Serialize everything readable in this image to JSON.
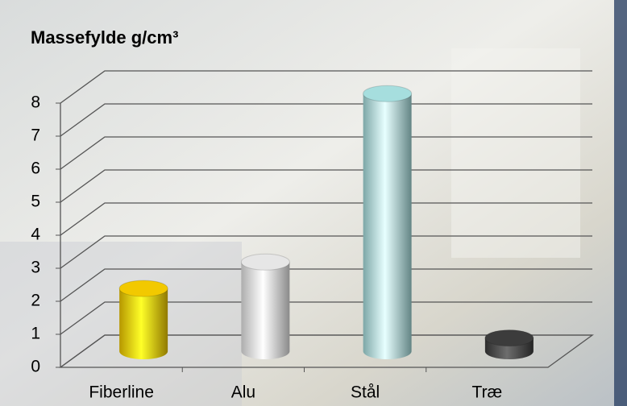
{
  "chart_data": {
    "type": "bar3d",
    "title": "Massefylde g/cm³",
    "categories": [
      "Fiberline",
      "Alu",
      "Stål",
      "Træ"
    ],
    "values": [
      1.9,
      2.7,
      7.8,
      0.4
    ],
    "colors": [
      "#f2c900",
      "#e6e6e6",
      "#a6dede",
      "#3c3c3c"
    ],
    "ylim": [
      0,
      8
    ],
    "yticks": [
      0,
      1,
      2,
      3,
      4,
      5,
      6,
      7,
      8
    ],
    "grid": true
  }
}
